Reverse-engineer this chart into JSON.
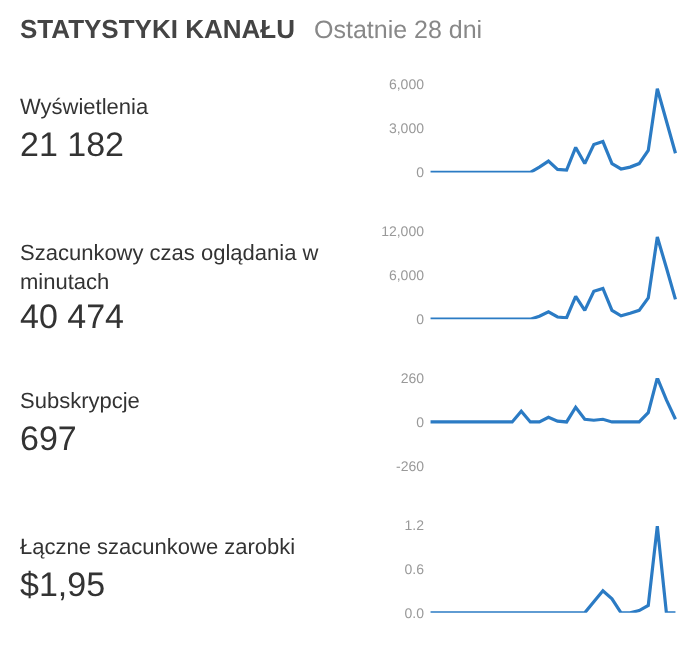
{
  "chart_data": [
    {
      "type": "other",
      "title": "STATYSTYKI KANAŁU",
      "subtitle": "Ostatnie 28 dni"
    },
    {
      "type": "line",
      "annotations": [
        "Wyświetlenia",
        "21 182"
      ],
      "categories": [
        null,
        null,
        null,
        null,
        null,
        null,
        null,
        null,
        null,
        null,
        null,
        null,
        null,
        null,
        null,
        null,
        null,
        null,
        null,
        null,
        null,
        null,
        null,
        null,
        null,
        null,
        null,
        null
      ],
      "color": "#2b7bc4",
      "tick_labels": "y",
      "ylim": [
        0,
        6000
      ],
      "yticks": [
        0,
        {
          "value": 3000,
          "label": "3,000"
        },
        {
          "value": 6000,
          "label": "6,000"
        }
      ],
      "values": [
        0,
        0,
        0,
        0,
        0,
        0,
        0,
        0,
        0,
        0,
        0,
        0,
        360,
        770,
        200,
        150,
        1700,
        600,
        1900,
        2100,
        600,
        230,
        360,
        600,
        1500,
        5700,
        3500,
        1300
      ]
    },
    {
      "type": "line",
      "annotations": [
        "Szacunkowy czas oglądania w minutach",
        "40 474"
      ],
      "categories": [
        null,
        null,
        null,
        null,
        null,
        null,
        null,
        null,
        null,
        null,
        null,
        null,
        null,
        null,
        null,
        null,
        null,
        null,
        null,
        null,
        null,
        null,
        null,
        null,
        null,
        null,
        null,
        null
      ],
      "color": "#2b7bc4",
      "tick_labels": "y",
      "ylim": [
        0,
        12000
      ],
      "yticks": [
        0,
        {
          "value": 6000,
          "label": "6,000"
        },
        {
          "value": 12000,
          "label": "12,000"
        }
      ],
      "values": [
        0,
        0,
        0,
        0,
        0,
        0,
        0,
        0,
        0,
        0,
        0,
        0,
        400,
        1000,
        300,
        200,
        3100,
        1200,
        3800,
        4200,
        1200,
        450,
        800,
        1200,
        2900,
        11200,
        7000,
        2700
      ]
    },
    {
      "type": "line",
      "annotations": [
        "Subskrypcje",
        "697"
      ],
      "categories": [
        null,
        null,
        null,
        null,
        null,
        null,
        null,
        null,
        null,
        null,
        null,
        null,
        null,
        null,
        null,
        null,
        null,
        null,
        null,
        null,
        null,
        null,
        null,
        null,
        null,
        null,
        null,
        null
      ],
      "color": "#2b7bc4",
      "tick_labels": "y",
      "ylim": [
        -260,
        260
      ],
      "yticks": [
        -260,
        0,
        260
      ],
      "values": [
        0,
        0,
        0,
        0,
        0,
        0,
        0,
        0,
        0,
        0,
        63,
        0,
        0,
        28,
        5,
        0,
        87,
        16,
        10,
        16,
        0,
        0,
        0,
        0,
        55,
        260,
        130,
        16
      ]
    },
    {
      "type": "line",
      "annotations": [
        "Łączne szacunkowe zarobki",
        "$1,95"
      ],
      "categories": [
        null,
        null,
        null,
        null,
        null,
        null,
        null,
        null,
        null,
        null,
        null,
        null,
        null,
        null,
        null,
        null,
        null,
        null,
        null,
        null,
        null,
        null,
        null,
        null,
        null,
        null,
        null,
        null
      ],
      "color": "#2b7bc4",
      "tick_labels": "y",
      "ylim": [
        0,
        1.2
      ],
      "yticks": [
        {
          "value": 0,
          "label": "0.0"
        },
        0.6,
        1.2
      ],
      "values": [
        0,
        0,
        0,
        0,
        0,
        0,
        0,
        0,
        0,
        0,
        0,
        0,
        0,
        0,
        0,
        0,
        0,
        0,
        0.15,
        0.3,
        0.19,
        0,
        0,
        0.03,
        0.1,
        1.18,
        0,
        0
      ]
    }
  ]
}
